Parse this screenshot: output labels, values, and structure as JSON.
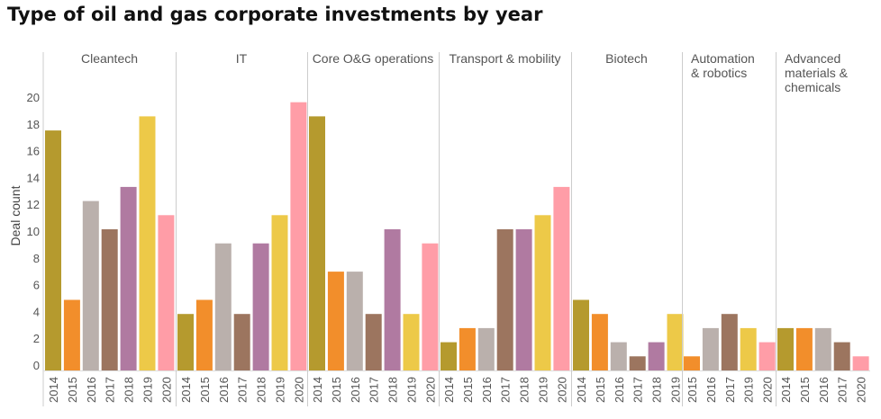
{
  "chart_data": {
    "type": "bar",
    "title": "Type of oil and gas corporate investments by year",
    "ylabel": "Deal count",
    "ylim": [
      0,
      20
    ],
    "yticks": [
      0,
      2,
      4,
      6,
      8,
      10,
      12,
      14,
      16,
      18,
      20
    ],
    "grid": false,
    "year_colors": {
      "2014": "#b59a2e",
      "2015": "#f28e2b",
      "2016": "#bab0ac",
      "2017": "#9c755f",
      "2018": "#b07aa1",
      "2019": "#edc948",
      "2020": "#ff9da7"
    },
    "panels": [
      {
        "name": "Cleantech",
        "years": [
          "2014",
          "2015",
          "2016",
          "2017",
          "2018",
          "2019",
          "2020"
        ],
        "values": [
          17,
          5,
          12,
          10,
          13,
          18,
          11
        ]
      },
      {
        "name": "IT",
        "years": [
          "2014",
          "2015",
          "2016",
          "2017",
          "2018",
          "2019",
          "2020"
        ],
        "values": [
          4,
          5,
          9,
          4,
          9,
          11,
          19
        ]
      },
      {
        "name": "Core O&G operations",
        "years": [
          "2014",
          "2015",
          "2016",
          "2017",
          "2018",
          "2019",
          "2020"
        ],
        "values": [
          18,
          7,
          7,
          4,
          10,
          4,
          9
        ]
      },
      {
        "name": "Transport & mobility",
        "years": [
          "2014",
          "2015",
          "2016",
          "2017",
          "2018",
          "2019",
          "2020"
        ],
        "values": [
          2,
          3,
          3,
          10,
          10,
          11,
          13
        ]
      },
      {
        "name": "Biotech",
        "years": [
          "2014",
          "2015",
          "2016",
          "2017",
          "2018",
          "2019"
        ],
        "values": [
          5,
          4,
          2,
          1,
          2,
          4
        ]
      },
      {
        "name": "Automation & robotics",
        "years": [
          "2015",
          "2016",
          "2017",
          "2019",
          "2020"
        ],
        "values": [
          1,
          3,
          4,
          3,
          2
        ]
      },
      {
        "name": "Advanced materials & chemicals",
        "years": [
          "2014",
          "2015",
          "2016",
          "2017",
          "2020"
        ],
        "values": [
          3,
          3,
          3,
          2,
          1
        ]
      }
    ]
  }
}
